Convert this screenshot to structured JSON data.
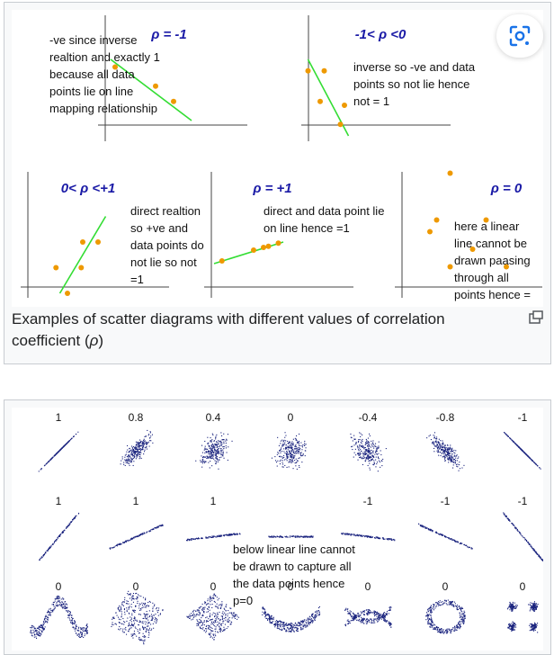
{
  "card1": {
    "caption_main": "Examples of scatter diagrams with different values of correlation coefficient (",
    "caption_rho": "ρ",
    "caption_end": ")",
    "expand_icon": "expand-icon",
    "lens_icon": "lens-icon"
  },
  "chart_data": [
    {
      "type": "scatter",
      "title": "ρ = -1",
      "annotation": [
        "-ve since inverse",
        "realtion and exactly 1",
        "because all data",
        "points lie on line",
        "mapping relationship"
      ],
      "points": [
        [
          0.1,
          0.9
        ],
        [
          0.55,
          0.65
        ],
        [
          0.75,
          0.45
        ]
      ],
      "fit_line": [
        [
          0.05,
          1.0
        ],
        [
          0.95,
          0.2
        ]
      ],
      "accent": "#ee9900",
      "line_color": "#33dd33",
      "title_color": "#1a1aa6"
    },
    {
      "type": "scatter",
      "title": "-1< ρ <0",
      "annotation": [
        "inverse so -ve and data",
        "points so not lie hence",
        "not = 1"
      ],
      "points": [
        [
          0.05,
          0.85
        ],
        [
          0.25,
          0.85
        ],
        [
          0.2,
          0.45
        ],
        [
          0.5,
          0.4
        ],
        [
          0.45,
          0.15
        ]
      ],
      "fit_line": [
        [
          0.05,
          1.0
        ],
        [
          0.55,
          0.0
        ]
      ],
      "accent": "#ee9900",
      "line_color": "#33dd33",
      "title_color": "#1a1aa6"
    },
    {
      "type": "scatter",
      "title": "0< ρ <+1",
      "annotation": [
        "direct realtion",
        "so +ve and",
        "data points do",
        "not lie so not",
        "=1"
      ],
      "points": [
        [
          0.05,
          0.3
        ],
        [
          0.4,
          0.6
        ],
        [
          0.6,
          0.6
        ],
        [
          0.38,
          0.3
        ],
        [
          0.2,
          0.0
        ]
      ],
      "fit_line": [
        [
          0.1,
          0.0
        ],
        [
          0.7,
          0.9
        ]
      ],
      "accent": "#ee9900",
      "line_color": "#33dd33",
      "title_color": "#1a1aa6"
    },
    {
      "type": "scatter",
      "title": "ρ = +1",
      "annotation": [
        "direct and data point lie",
        "on line hence =1"
      ],
      "points": [
        [
          0.08,
          0.35
        ],
        [
          0.4,
          0.55
        ],
        [
          0.5,
          0.6
        ],
        [
          0.55,
          0.62
        ],
        [
          0.65,
          0.68
        ]
      ],
      "fit_line": [
        [
          0.0,
          0.3
        ],
        [
          0.7,
          0.7
        ]
      ],
      "accent": "#ee9900",
      "line_color": "#33dd33",
      "title_color": "#1a1aa6"
    },
    {
      "type": "scatter",
      "title": "ρ = 0",
      "annotation": [
        "here a linear",
        "line cannot be",
        "drawn paasing",
        "through all",
        "points hence =",
        "0"
      ],
      "points": [
        [
          0.3,
          0.95
        ],
        [
          0.18,
          0.55
        ],
        [
          0.12,
          0.45
        ],
        [
          0.62,
          0.55
        ],
        [
          0.5,
          0.3
        ],
        [
          0.3,
          0.15
        ],
        [
          0.8,
          0.15
        ]
      ],
      "accent": "#ee9900",
      "title_color": "#1a1aa6"
    },
    {
      "type": "scatter",
      "title": "",
      "top_row_labels": [
        "1",
        "0.8",
        "0.4",
        "0",
        "-0.4",
        "-0.8",
        "-1"
      ],
      "middle_row_labels": [
        "1",
        "1",
        "1",
        "",
        "-1",
        "-1",
        "-1"
      ],
      "bottom_row_labels": [
        "0",
        "0",
        "0",
        "0",
        "0",
        "0",
        "0"
      ],
      "annotation": [
        "below linear line cannot",
        "be drawn to capture all",
        "the data points hence",
        "p=0"
      ],
      "point_color": "#1a237e"
    }
  ]
}
